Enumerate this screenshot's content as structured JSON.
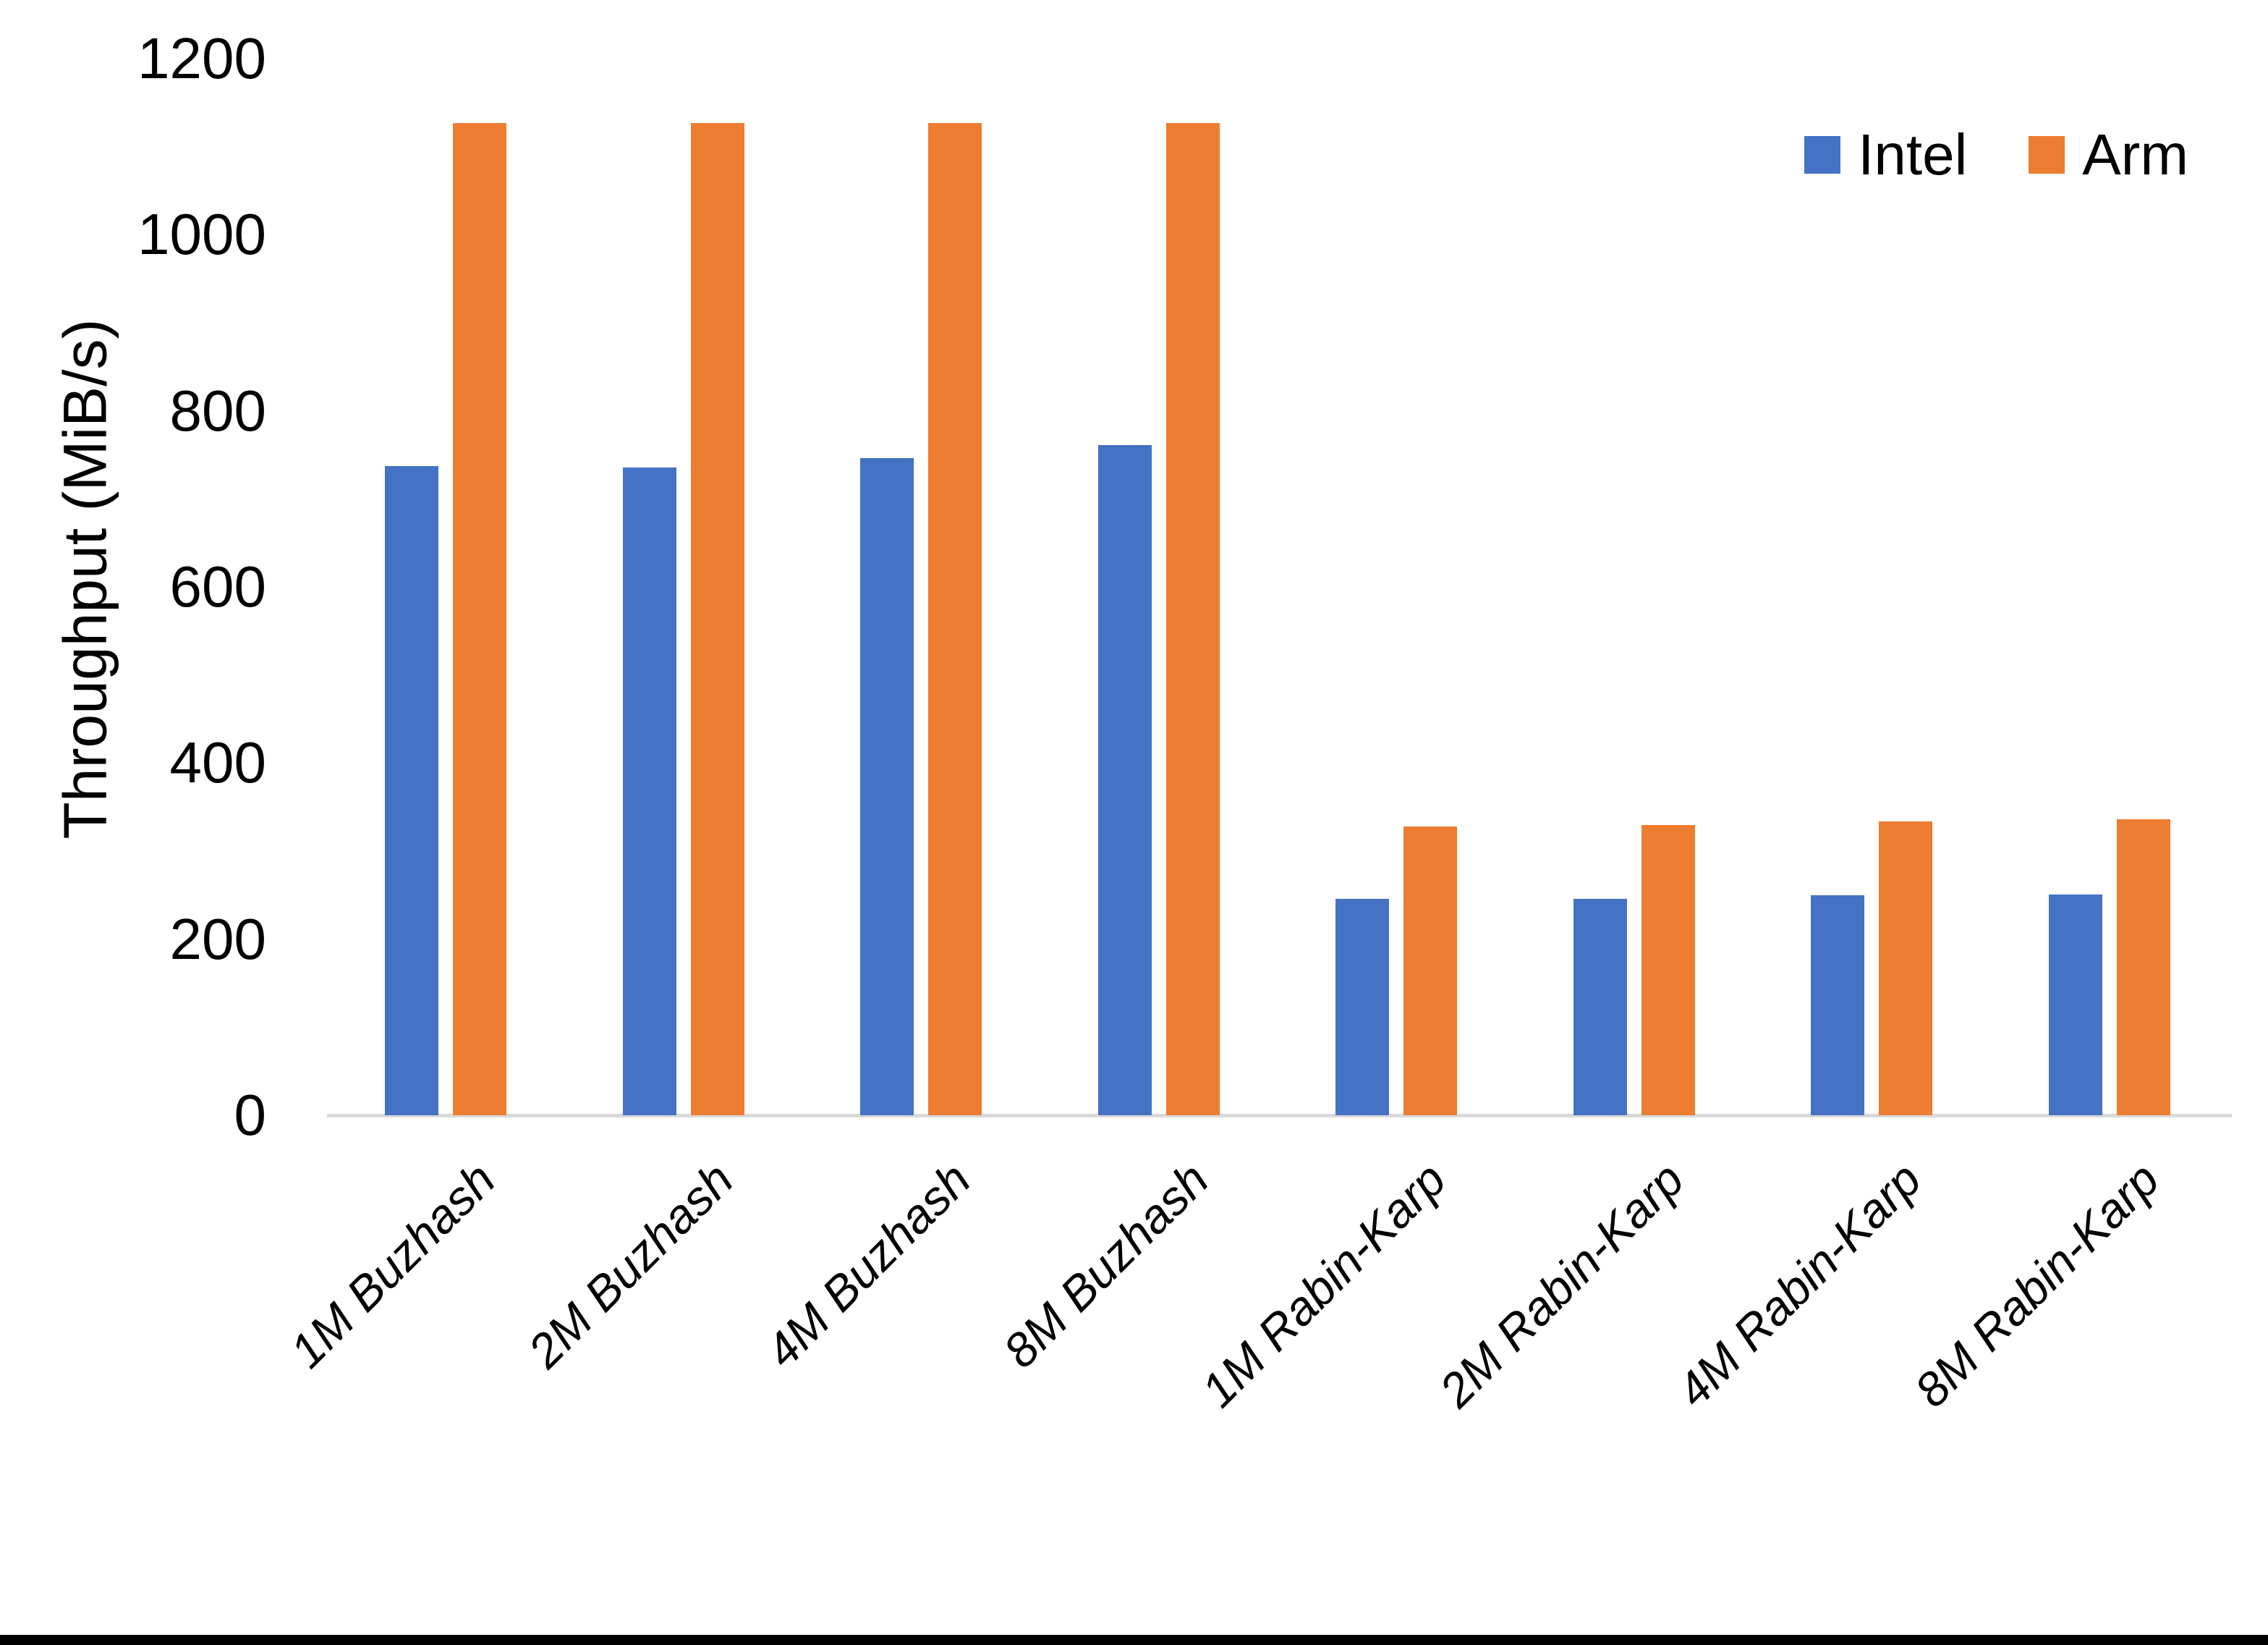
{
  "chart_data": {
    "type": "bar",
    "title": "",
    "ylabel": "Throughput (MiB/s)",
    "xlabel": "",
    "ylim": [
      0,
      1200
    ],
    "yticks": [
      0,
      200,
      400,
      600,
      800,
      1000,
      1200
    ],
    "grid": false,
    "legend_position": "top-right",
    "categories": [
      "1M Buzhash",
      "2M Buzhash",
      "4M Buzhash",
      "8M Buzhash",
      "1M Rabin-Karp",
      "2M Rabin-Karp",
      "4M Rabin-Karp",
      "8M Rabin-Karp"
    ],
    "series": [
      {
        "name": "Intel",
        "color": "#4472C4",
        "values": [
          737,
          736,
          746,
          761,
          246,
          246,
          250,
          251
        ]
      },
      {
        "name": "Arm",
        "color": "#ED7D31",
        "values": [
          1127,
          1127,
          1127,
          1127,
          328,
          330,
          334,
          336
        ]
      }
    ],
    "style": {
      "axis_line_color": "#D9D9D9",
      "text_color": "#000000",
      "background": "#FFFFFF",
      "bottom_border_color": "#000000"
    }
  }
}
